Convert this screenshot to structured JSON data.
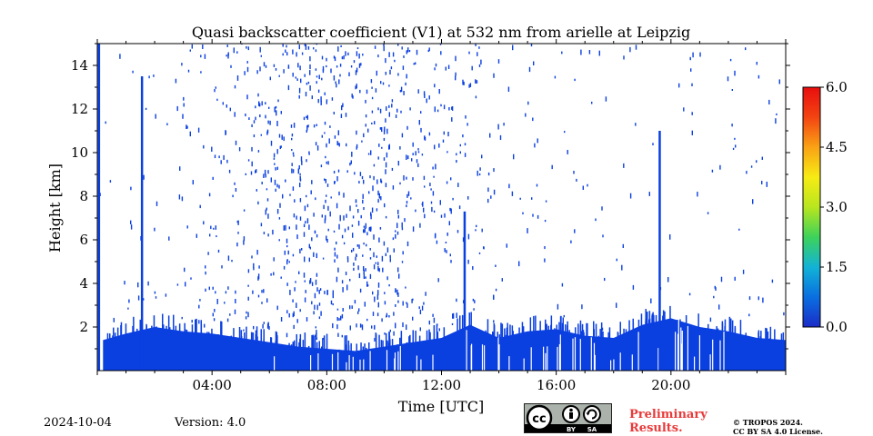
{
  "chart_data": {
    "type": "heatmap",
    "title": "Quasi backscatter coefficient (V1) at 532 nm from arielle at Leipzig",
    "xlabel": "Time [UTC]",
    "ylabel": "Height [km]",
    "xlim": [
      0,
      24
    ],
    "ylim": [
      0,
      15
    ],
    "x_ticks": [
      {
        "value": 4,
        "label": "04:00"
      },
      {
        "value": 8,
        "label": "08:00"
      },
      {
        "value": 12,
        "label": "12:00"
      },
      {
        "value": 16,
        "label": "16:00"
      },
      {
        "value": 20,
        "label": "20:00"
      }
    ],
    "y_ticks": [
      {
        "value": 2,
        "label": "2"
      },
      {
        "value": 4,
        "label": "4"
      },
      {
        "value": 6,
        "label": "6"
      },
      {
        "value": 8,
        "label": "8"
      },
      {
        "value": 10,
        "label": "10"
      },
      {
        "value": 12,
        "label": "12"
      },
      {
        "value": 14,
        "label": "14"
      }
    ],
    "colorbar": {
      "range": [
        0.0,
        6.0
      ],
      "ticks": [
        {
          "value": 0.0,
          "label": "0.0"
        },
        {
          "value": 1.5,
          "label": "1.5"
        },
        {
          "value": 3.0,
          "label": "3.0"
        },
        {
          "value": 4.5,
          "label": "4.5"
        },
        {
          "value": 6.0,
          "label": "6.0"
        }
      ],
      "colormap": [
        "#1a2cc7",
        "#0a6fe0",
        "#12b3d6",
        "#3dd25a",
        "#b8e61e",
        "#f7ec14",
        "#f9a215",
        "#f34411",
        "#e80e0e"
      ]
    },
    "signal_color": "#0a3fe0",
    "boundary_layer_top_km": [
      {
        "t": 0.2,
        "h": 1.4
      },
      {
        "t": 1.0,
        "h": 1.7
      },
      {
        "t": 2.0,
        "h": 2.0
      },
      {
        "t": 3.0,
        "h": 1.8
      },
      {
        "t": 4.0,
        "h": 1.7
      },
      {
        "t": 5.0,
        "h": 1.5
      },
      {
        "t": 6.0,
        "h": 1.3
      },
      {
        "t": 7.0,
        "h": 1.1
      },
      {
        "t": 8.0,
        "h": 1.0
      },
      {
        "t": 9.0,
        "h": 0.9
      },
      {
        "t": 10.0,
        "h": 1.1
      },
      {
        "t": 11.0,
        "h": 1.3
      },
      {
        "t": 12.0,
        "h": 1.5
      },
      {
        "t": 13.0,
        "h": 2.1
      },
      {
        "t": 14.0,
        "h": 1.5
      },
      {
        "t": 15.0,
        "h": 1.8
      },
      {
        "t": 16.0,
        "h": 1.9
      },
      {
        "t": 17.0,
        "h": 1.6
      },
      {
        "t": 18.0,
        "h": 1.5
      },
      {
        "t": 19.0,
        "h": 2.1
      },
      {
        "t": 20.0,
        "h": 2.4
      },
      {
        "t": 21.0,
        "h": 2.0
      },
      {
        "t": 22.0,
        "h": 1.8
      },
      {
        "t": 23.0,
        "h": 1.5
      },
      {
        "t": 24.0,
        "h": 1.4
      }
    ],
    "cloud_columns": [
      {
        "t": 0.05,
        "top_km": 15.0
      },
      {
        "t": 1.55,
        "top_km": 13.5
      },
      {
        "t": 12.8,
        "top_km": 7.3
      },
      {
        "t": 19.6,
        "top_km": 11.0
      }
    ],
    "scatter_noise": {
      "peak_time": 8.5,
      "spread_hours": 3.0,
      "density": 1100
    }
  },
  "footer": {
    "date": "2024-10-04",
    "version": "Version: 4.0",
    "preliminary_line1": "Preliminary",
    "preliminary_line2": "Results.",
    "copyright_line1": "© TROPOS 2024.",
    "copyright_line2": "CC BY SA 4.0 License.",
    "cc_by": "BY",
    "cc_sa": "SA"
  }
}
